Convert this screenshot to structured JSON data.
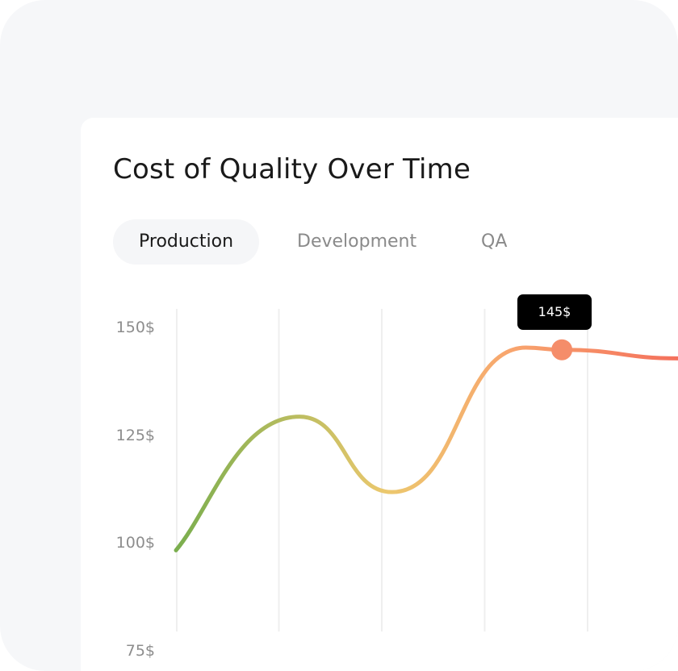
{
  "title": "Cost of Quality Over Time",
  "tabs": [
    {
      "label": "Production",
      "active": true
    },
    {
      "label": "Development",
      "active": false
    },
    {
      "label": "QA",
      "active": false
    }
  ],
  "colors": {
    "gradient_start": "#7aae4e",
    "gradient_mid": "#ecc86e",
    "gradient_peak": "#f8a66e",
    "gradient_end": "#f4705c",
    "marker": "#f58d6a",
    "tooltip_bg": "#000000",
    "gridline": "#efefef"
  },
  "chart_data": {
    "type": "line",
    "title": "Cost of Quality Over Time",
    "xlabel": "",
    "ylabel": "",
    "y_ticks": [
      "150$",
      "125$",
      "100$",
      "75$"
    ],
    "ylim": [
      75,
      150
    ],
    "grid": "vertical",
    "series": [
      {
        "x": [
          0,
          1.2,
          2.1,
          3.4,
          3.75,
          4.9
        ],
        "values": [
          98.5,
          129.5,
          112,
          145.5,
          145,
          143
        ]
      }
    ],
    "highlight": {
      "x": 3.75,
      "value": 145,
      "label": "145$"
    }
  }
}
